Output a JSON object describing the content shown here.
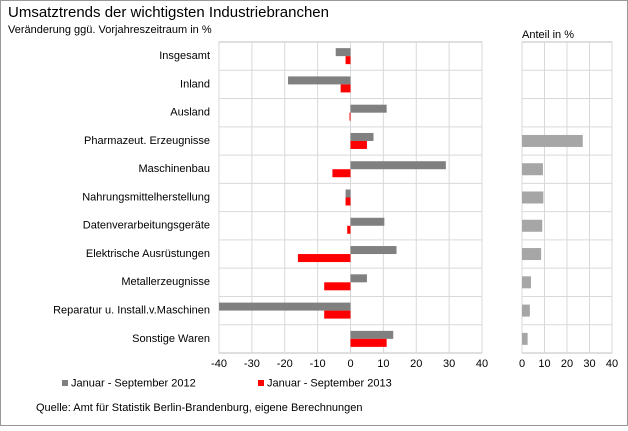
{
  "chart_data": [
    {
      "type": "hbar",
      "title": "Umsatztrends der wichtigsten Industriebranchen",
      "subtitle": "Veränderung ggü. Vorjahreszeitraum in %",
      "categories": [
        "Insgesamt",
        "Inland",
        "Ausland",
        "Pharmazeut. Erzeugnisse",
        "Maschinenbau",
        "Nahrungsmittelherstellung",
        "Datenverarbeitungsgeräte",
        "Elektrische Ausrüstungen",
        "Metallerzeugnisse",
        "Reparatur u. Install.v.Maschinen",
        "Sonstige Waren"
      ],
      "series": [
        {
          "name": "Januar - September 2012",
          "color": "#808080",
          "values": [
            -4.5,
            -19,
            11,
            7,
            29,
            -1.5,
            10.3,
            14,
            5,
            -40,
            13
          ]
        },
        {
          "name": "Januar - September 2013",
          "color": "#ff0000",
          "values": [
            -1.5,
            -3,
            -0.3,
            5,
            -5.5,
            -1.5,
            -1,
            -16,
            -8,
            -8,
            11
          ]
        }
      ],
      "xlim": [
        -40,
        40
      ],
      "xticks": [
        -40,
        -30,
        -20,
        -10,
        0,
        10,
        20,
        30,
        40
      ],
      "grid": true,
      "source": "Quelle: Amt für Statistik Berlin-Brandenburg, eigene Berechnungen"
    },
    {
      "type": "hbar",
      "title": "Anteil in %",
      "series": [
        {
          "color": "#a6a6a6",
          "values": [
            null,
            null,
            null,
            27,
            9.3,
            9.5,
            9,
            8.5,
            4,
            3.5,
            2.5
          ]
        }
      ],
      "xlim": [
        0,
        40
      ],
      "xticks": [
        0,
        10,
        20,
        30,
        40
      ],
      "grid": true
    }
  ]
}
